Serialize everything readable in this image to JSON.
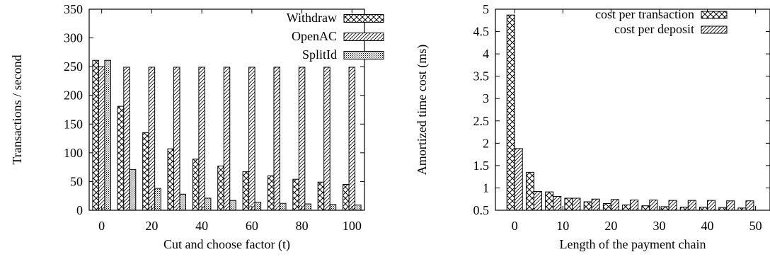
{
  "chart_data": [
    {
      "type": "bar",
      "xlabel": "Cut and choose factor (t)",
      "ylabel": "Transactions / second",
      "ylim": [
        0,
        350
      ],
      "yticks": [
        0,
        50,
        100,
        150,
        200,
        250,
        300,
        350
      ],
      "xlim": [
        -5,
        105
      ],
      "xticks": [
        0,
        20,
        40,
        60,
        80,
        100
      ],
      "x": [
        0,
        10,
        20,
        30,
        40,
        50,
        60,
        70,
        80,
        90,
        100
      ],
      "legend_position": "top-right",
      "series": [
        {
          "name": "Withdraw",
          "pattern": "crosshatch",
          "values": [
            261,
            181,
            135,
            107,
            89,
            77,
            67,
            60,
            54,
            49,
            45
          ]
        },
        {
          "name": "OpenAC",
          "pattern": "diagonal",
          "values": [
            250,
            249,
            249,
            249,
            249,
            249,
            249,
            249,
            249,
            249,
            249
          ]
        },
        {
          "name": "SplitId",
          "pattern": "dots",
          "values": [
            261,
            71,
            38,
            28,
            21,
            17,
            14,
            12,
            11,
            10,
            9
          ]
        }
      ]
    },
    {
      "type": "bar",
      "xlabel": "Length of the payment chain",
      "ylabel": "Amortized time cost (ms)",
      "ylim": [
        0.5,
        5
      ],
      "yticks": [
        0.5,
        1,
        1.5,
        2,
        2.5,
        3,
        3.5,
        4,
        4.5,
        5
      ],
      "xlim": [
        -4,
        53
      ],
      "xticks": [
        0,
        10,
        20,
        30,
        40,
        50
      ],
      "x": [
        0,
        4,
        8,
        12,
        16,
        20,
        24,
        28,
        32,
        36,
        40,
        44,
        48
      ],
      "legend_position": "top-right",
      "series": [
        {
          "name": "cost per transaction",
          "pattern": "crosshatch",
          "values": [
            4.87,
            1.35,
            0.91,
            0.77,
            0.69,
            0.65,
            0.62,
            0.6,
            0.58,
            0.57,
            0.57,
            0.56,
            0.55
          ]
        },
        {
          "name": "cost per deposit",
          "pattern": "diagonal",
          "values": [
            1.88,
            0.92,
            0.81,
            0.77,
            0.75,
            0.74,
            0.73,
            0.73,
            0.72,
            0.72,
            0.72,
            0.71,
            0.71
          ]
        }
      ]
    }
  ]
}
